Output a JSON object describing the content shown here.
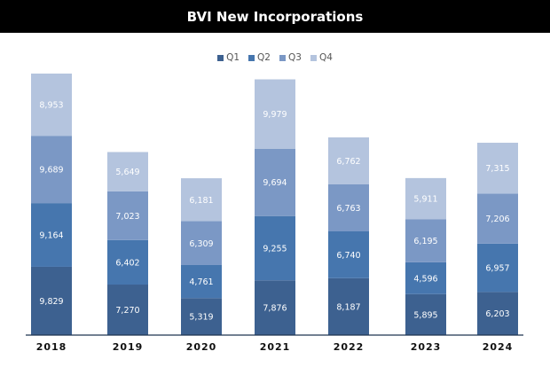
{
  "header": {
    "title": "BVI New Incorporations"
  },
  "chart_data": {
    "type": "bar",
    "stacked": true,
    "title": "BVI New Incorporations",
    "xlabel": "",
    "ylabel": "",
    "categories": [
      "2018",
      "2019",
      "2020",
      "2021",
      "2022",
      "2023",
      "2024"
    ],
    "series": [
      {
        "name": "Q1",
        "color": "#3d6190",
        "values": [
          9829,
          7270,
          5319,
          7876,
          8187,
          5895,
          6203
        ],
        "labels": [
          "9,829",
          "7,270",
          "5,319",
          "7,876",
          "8,187",
          "5,895",
          "6,203"
        ]
      },
      {
        "name": "Q2",
        "color": "#4676ae",
        "values": [
          9164,
          6402,
          4761,
          9255,
          6740,
          4596,
          6957
        ],
        "labels": [
          "9,164",
          "6,402",
          "4,761",
          "9,255",
          "6,740",
          "4,596",
          "6,957"
        ]
      },
      {
        "name": "Q3",
        "color": "#7b98c5",
        "values": [
          9689,
          7023,
          6309,
          9694,
          6763,
          6195,
          7206
        ],
        "labels": [
          "9,689",
          "7,023",
          "6,309",
          "9,694",
          "6,763",
          "6,195",
          "7,206"
        ]
      },
      {
        "name": "Q4",
        "color": "#b4c4de",
        "values": [
          8953,
          5649,
          6181,
          9979,
          6762,
          5911,
          7315
        ],
        "labels": [
          "8,953",
          "5,649",
          "6,181",
          "9,979",
          "6,762",
          "5,911",
          "7,315"
        ]
      }
    ],
    "ylim": [
      0,
      38000
    ],
    "grid": false,
    "legend_position": "top-center"
  }
}
